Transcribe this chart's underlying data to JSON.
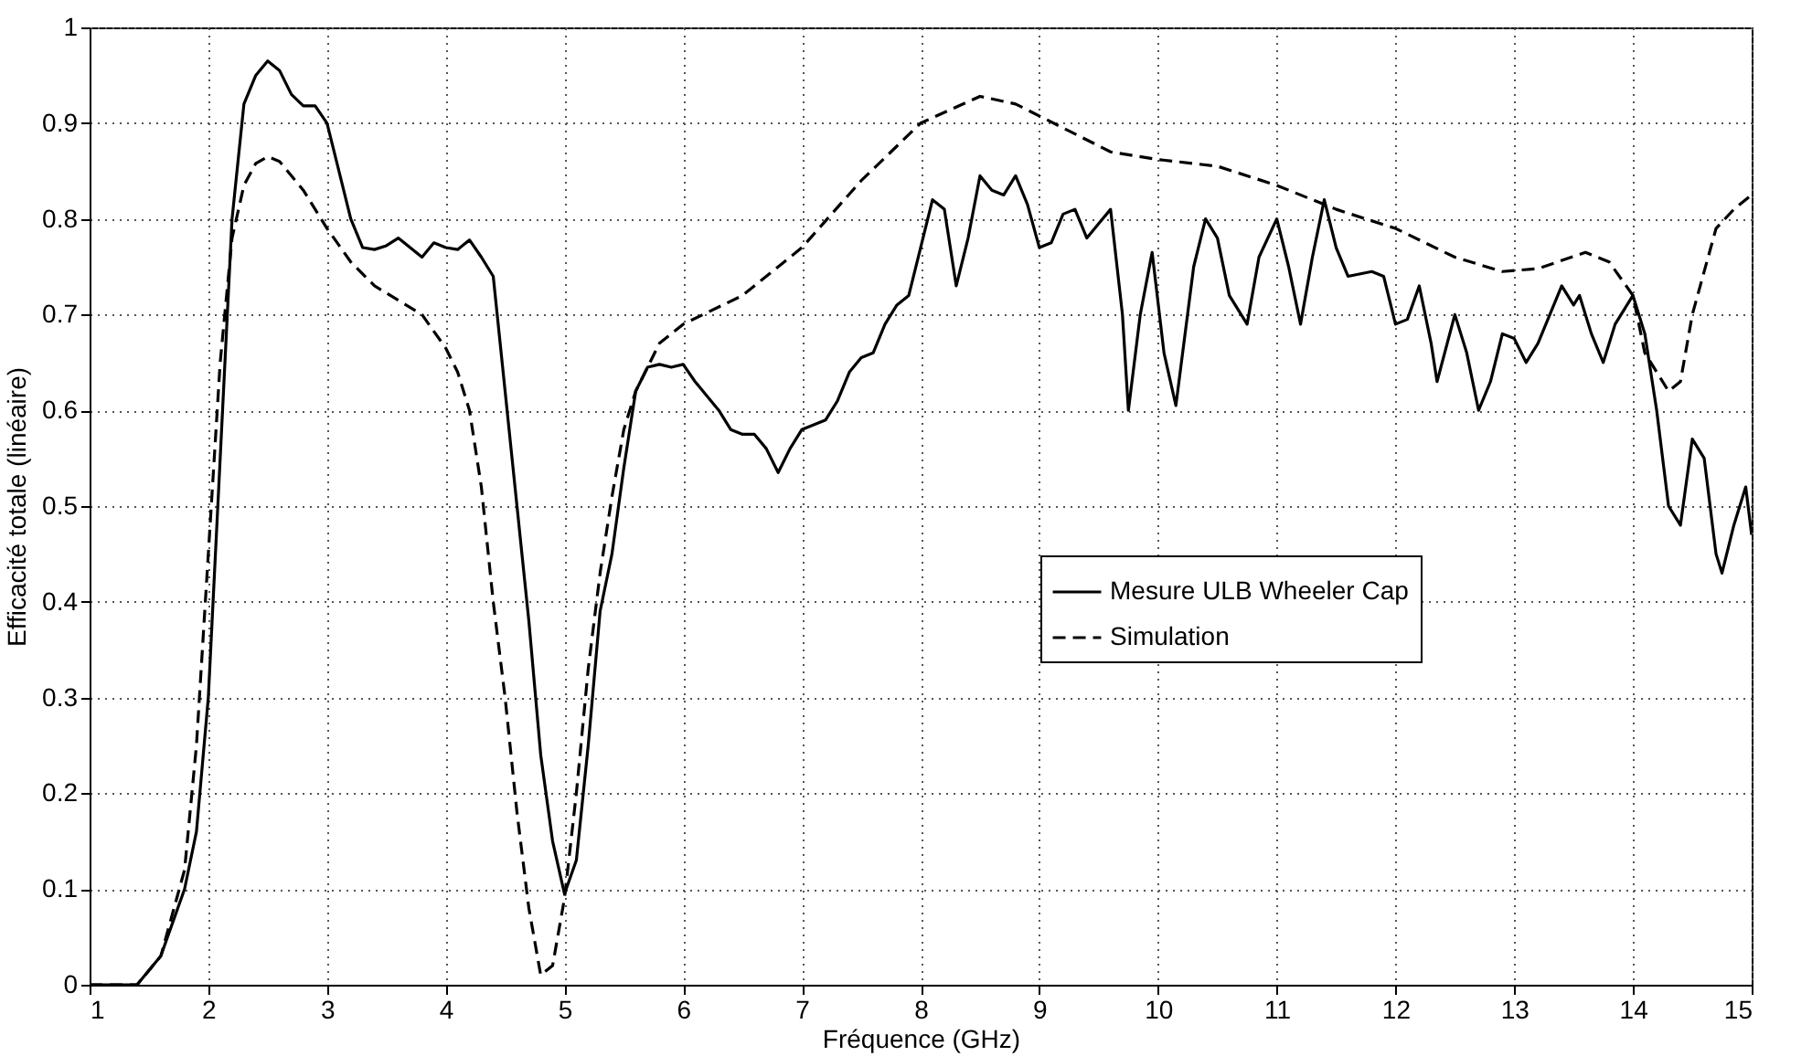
{
  "chart_data": {
    "type": "line",
    "xlabel": "Fréquence (GHz)",
    "ylabel": "Efficacité totale (linéaire)",
    "xlim": [
      1,
      15
    ],
    "xticks": [
      1,
      2,
      3,
      4,
      5,
      6,
      7,
      8,
      9,
      10,
      11,
      12,
      13,
      14,
      15
    ],
    "ylim": [
      0,
      1
    ],
    "yticks": [
      0,
      0.1,
      0.2,
      0.3,
      0.4,
      0.5,
      0.6,
      0.7,
      0.8,
      0.9,
      1
    ],
    "grid": true,
    "legend": "right",
    "series": [
      {
        "name": "Mesure ULB Wheeler Cap",
        "color": "#000000",
        "line_style": "solid",
        "x": [
          1.0,
          1.4,
          1.6,
          1.8,
          1.9,
          2.0,
          2.1,
          2.2,
          2.3,
          2.4,
          2.5,
          2.6,
          2.7,
          2.8,
          2.9,
          3.0,
          3.1,
          3.2,
          3.3,
          3.4,
          3.5,
          3.6,
          3.7,
          3.8,
          3.9,
          4.0,
          4.1,
          4.2,
          4.3,
          4.4,
          4.5,
          4.6,
          4.7,
          4.8,
          4.9,
          5.0,
          5.1,
          5.2,
          5.3,
          5.4,
          5.5,
          5.6,
          5.7,
          5.8,
          5.9,
          6.0,
          6.1,
          6.2,
          6.3,
          6.4,
          6.5,
          6.6,
          6.7,
          6.8,
          6.9,
          7.0,
          7.2,
          7.3,
          7.4,
          7.5,
          7.6,
          7.7,
          7.8,
          7.9,
          8.0,
          8.1,
          8.2,
          8.3,
          8.4,
          8.5,
          8.6,
          8.7,
          8.8,
          8.9,
          9.0,
          9.1,
          9.2,
          9.3,
          9.4,
          9.5,
          9.6,
          9.7,
          9.75,
          9.85,
          9.95,
          10.05,
          10.15,
          10.3,
          10.4,
          10.5,
          10.6,
          10.75,
          10.85,
          11.0,
          11.1,
          11.2,
          11.3,
          11.4,
          11.5,
          11.6,
          11.8,
          11.9,
          12.0,
          12.1,
          12.2,
          12.3,
          12.35,
          12.5,
          12.6,
          12.7,
          12.8,
          12.9,
          13.0,
          13.1,
          13.2,
          13.3,
          13.4,
          13.5,
          13.55,
          13.65,
          13.75,
          13.85,
          14.0,
          14.1,
          14.2,
          14.3,
          14.4,
          14.5,
          14.6,
          14.7,
          14.75,
          14.85,
          14.95,
          15.0
        ],
        "values": [
          0,
          0,
          0.03,
          0.1,
          0.16,
          0.3,
          0.55,
          0.8,
          0.92,
          0.95,
          0.965,
          0.955,
          0.93,
          0.918,
          0.918,
          0.9,
          0.85,
          0.8,
          0.77,
          0.768,
          0.772,
          0.78,
          0.77,
          0.76,
          0.775,
          0.77,
          0.768,
          0.778,
          0.76,
          0.74,
          0.62,
          0.5,
          0.38,
          0.24,
          0.15,
          0.095,
          0.13,
          0.25,
          0.39,
          0.45,
          0.54,
          0.62,
          0.645,
          0.648,
          0.645,
          0.648,
          0.63,
          0.615,
          0.6,
          0.58,
          0.575,
          0.575,
          0.56,
          0.535,
          0.56,
          0.58,
          0.59,
          0.61,
          0.64,
          0.655,
          0.66,
          0.69,
          0.71,
          0.72,
          0.77,
          0.82,
          0.81,
          0.73,
          0.78,
          0.845,
          0.83,
          0.825,
          0.845,
          0.815,
          0.77,
          0.775,
          0.805,
          0.81,
          0.78,
          0.795,
          0.81,
          0.7,
          0.6,
          0.7,
          0.765,
          0.66,
          0.605,
          0.75,
          0.8,
          0.78,
          0.72,
          0.69,
          0.76,
          0.8,
          0.75,
          0.69,
          0.76,
          0.82,
          0.77,
          0.74,
          0.745,
          0.74,
          0.69,
          0.695,
          0.73,
          0.67,
          0.63,
          0.7,
          0.66,
          0.6,
          0.63,
          0.68,
          0.675,
          0.65,
          0.67,
          0.7,
          0.73,
          0.71,
          0.72,
          0.68,
          0.65,
          0.69,
          0.72,
          0.68,
          0.6,
          0.5,
          0.48,
          0.57,
          0.55,
          0.45,
          0.43,
          0.48,
          0.52,
          0.47
        ]
      },
      {
        "name": "Simulation",
        "color": "#000000",
        "line_style": "dashed",
        "x": [
          1.0,
          1.4,
          1.6,
          1.8,
          1.9,
          2.0,
          2.1,
          2.2,
          2.3,
          2.4,
          2.5,
          2.6,
          2.8,
          3.0,
          3.2,
          3.4,
          3.6,
          3.8,
          4.0,
          4.1,
          4.2,
          4.3,
          4.4,
          4.5,
          4.6,
          4.7,
          4.8,
          4.9,
          5.0,
          5.1,
          5.2,
          5.3,
          5.4,
          5.5,
          5.6,
          5.8,
          6.0,
          6.5,
          7.0,
          7.5,
          8.0,
          8.5,
          8.8,
          9.2,
          9.6,
          10.0,
          10.5,
          11.0,
          11.5,
          12.0,
          12.5,
          12.9,
          13.2,
          13.6,
          13.8,
          14.0,
          14.1,
          14.3,
          14.4,
          14.5,
          14.7,
          14.85,
          15.0
        ],
        "values": [
          0,
          0,
          0.03,
          0.12,
          0.25,
          0.45,
          0.65,
          0.78,
          0.835,
          0.858,
          0.865,
          0.86,
          0.83,
          0.79,
          0.755,
          0.73,
          0.715,
          0.7,
          0.665,
          0.64,
          0.6,
          0.52,
          0.4,
          0.3,
          0.18,
          0.08,
          0.01,
          0.02,
          0.09,
          0.2,
          0.33,
          0.43,
          0.51,
          0.58,
          0.62,
          0.67,
          0.69,
          0.72,
          0.77,
          0.84,
          0.9,
          0.928,
          0.92,
          0.895,
          0.87,
          0.862,
          0.855,
          0.835,
          0.81,
          0.79,
          0.76,
          0.745,
          0.748,
          0.765,
          0.755,
          0.72,
          0.66,
          0.62,
          0.63,
          0.7,
          0.79,
          0.81,
          0.825
        ]
      }
    ]
  }
}
